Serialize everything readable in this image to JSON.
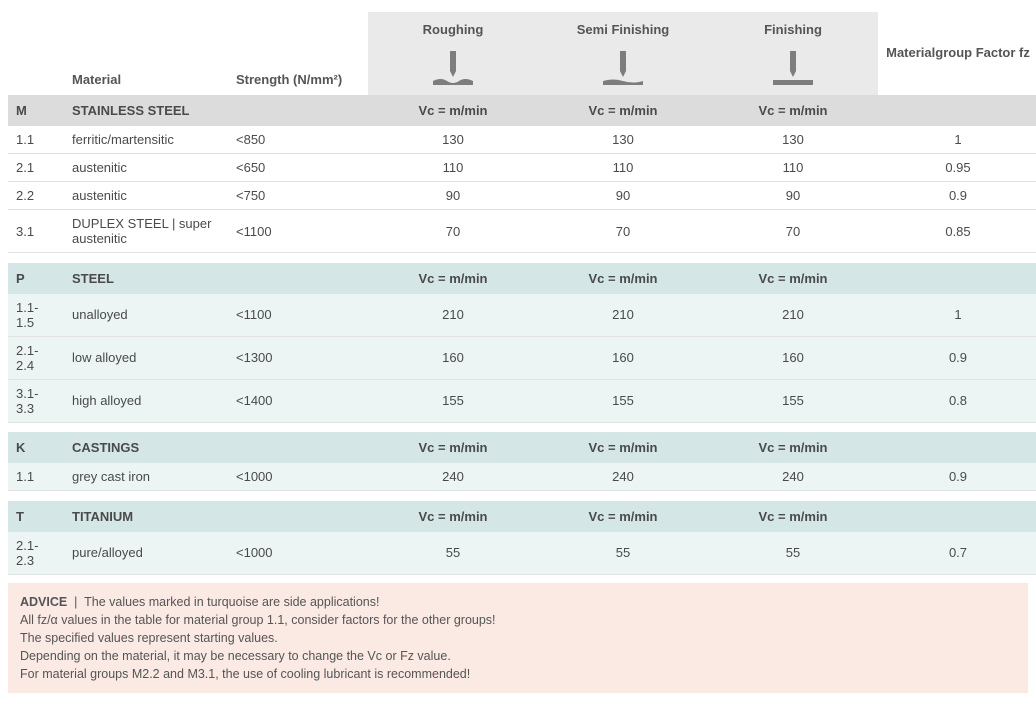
{
  "headers": {
    "material": "Material",
    "strength": "Strength (N/mm²)",
    "fz": "Materialgroup Factor fz",
    "vc_unit": "Vc = m/min",
    "operations": [
      "Roughing",
      "Semi Finishing",
      "Finishing"
    ]
  },
  "colors": {
    "bar_m": "#f0c419",
    "bar_p": "#3a5ea8",
    "bar_k": "#d84c3f",
    "bar_t": "#3a5ea8",
    "grp_m_bg": "#dcdcdc",
    "grp_other_bg": "#d4e6e6",
    "turquoise_row": "#ecf4f4",
    "advice_bg": "#fbe9e3",
    "op_head_bg": "#e9eae9",
    "icon_gray": "#7d7d7d"
  },
  "groups": [
    {
      "code": "M",
      "name": "STAINLESS STEEL",
      "bar": "bar-m",
      "grpclass": "grp-m",
      "rows": [
        {
          "code": "1.1",
          "material": "ferritic/martensitic",
          "strength": "<850",
          "vals": [
            "130",
            "130",
            "130"
          ],
          "fz": "1",
          "turq": false
        },
        {
          "code": "2.1",
          "material": "austenitic",
          "strength": "<650",
          "vals": [
            "110",
            "110",
            "110"
          ],
          "fz": "0.95",
          "turq": false
        },
        {
          "code": "2.2",
          "material": "austenitic",
          "strength": "<750",
          "vals": [
            "90",
            "90",
            "90"
          ],
          "fz": "0.9",
          "turq": false
        },
        {
          "code": "3.1",
          "material": "DUPLEX STEEL | super austenitic",
          "strength": "<1100",
          "vals": [
            "70",
            "70",
            "70"
          ],
          "fz": "0.85",
          "turq": false
        }
      ]
    },
    {
      "code": "P",
      "name": "STEEL",
      "bar": "bar-p",
      "grpclass": "grp-p",
      "rows": [
        {
          "code": "1.1-1.5",
          "material": "unalloyed",
          "strength": "<1100",
          "vals": [
            "210",
            "210",
            "210"
          ],
          "fz": "1",
          "turq": true
        },
        {
          "code": "2.1-2.4",
          "material": "low alloyed",
          "strength": "<1300",
          "vals": [
            "160",
            "160",
            "160"
          ],
          "fz": "0.9",
          "turq": true
        },
        {
          "code": "3.1-3.3",
          "material": "high alloyed",
          "strength": "<1400",
          "vals": [
            "155",
            "155",
            "155"
          ],
          "fz": "0.8",
          "turq": true
        }
      ]
    },
    {
      "code": "K",
      "name": "CASTINGS",
      "bar": "bar-k",
      "grpclass": "grp-k",
      "rows": [
        {
          "code": "1.1",
          "material": "grey cast iron",
          "strength": "<1000",
          "vals": [
            "240",
            "240",
            "240"
          ],
          "fz": "0.9",
          "turq": true
        }
      ]
    },
    {
      "code": "T",
      "name": "TITANIUM",
      "bar": "bar-t",
      "grpclass": "grp-t",
      "rows": [
        {
          "code": "2.1-2.3",
          "material": "pure/alloyed",
          "strength": "<1000",
          "vals": [
            "55",
            "55",
            "55"
          ],
          "fz": "0.7",
          "turq": true
        }
      ]
    }
  ],
  "advice": {
    "label": "ADVICE",
    "lines": [
      "The values marked in turquoise are side applications!",
      "All fz/α values in the table for material group 1.1, consider factors for the other groups!",
      "The specified values represent starting values.",
      "Depending on the material, it may be necessary to change the Vc or Fz value.",
      "For material groups M2.2 and M3.1, the use of cooling lubricant is recommended!"
    ]
  }
}
